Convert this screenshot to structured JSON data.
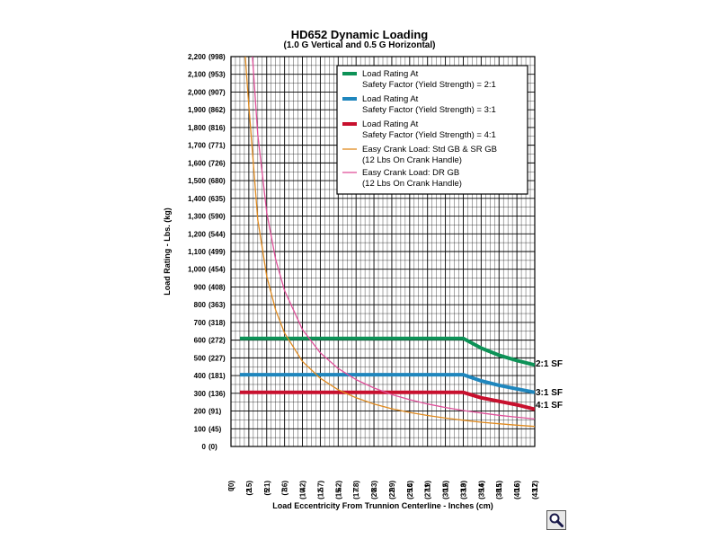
{
  "chart_data": {
    "type": "line",
    "title": "HD652 Dynamic Loading",
    "subtitle": "(1.0 G Vertical and 0.5 G Horizontal)",
    "xlabel": "Load Eccentricity From Trunnion Centerline - Inches (cm)",
    "ylabel": "Load Rating - Lbs. (kg)",
    "xlim": [
      0,
      17
    ],
    "ylim": [
      0,
      2200
    ],
    "grid": true,
    "legend_position": "top-right",
    "x_ticks": [
      {
        "in": "0",
        "cm": "(0)"
      },
      {
        "in": "1",
        "cm": "(2.5)"
      },
      {
        "in": "2",
        "cm": "(5.1)"
      },
      {
        "in": "3",
        "cm": "(7.6)"
      },
      {
        "in": "4",
        "cm": "(10.2)"
      },
      {
        "in": "5",
        "cm": "(12.7)"
      },
      {
        "in": "6",
        "cm": "(15.2)"
      },
      {
        "in": "7",
        "cm": "(17.8)"
      },
      {
        "in": "8",
        "cm": "(20.3)"
      },
      {
        "in": "9",
        "cm": "(22.9)"
      },
      {
        "in": "10",
        "cm": "(25.4)"
      },
      {
        "in": "11",
        "cm": "(27.9)"
      },
      {
        "in": "12",
        "cm": "(30.5)"
      },
      {
        "in": "13",
        "cm": "(33.0)"
      },
      {
        "in": "14",
        "cm": "(35.6)"
      },
      {
        "in": "15",
        "cm": "(38.1)"
      },
      {
        "in": "16",
        "cm": "(40.6)"
      },
      {
        "in": "17",
        "cm": "(43.2)"
      }
    ],
    "y_ticks": [
      {
        "lbs": "0",
        "kg": "(0)"
      },
      {
        "lbs": "100",
        "kg": "(45)"
      },
      {
        "lbs": "200",
        "kg": "(91)"
      },
      {
        "lbs": "300",
        "kg": "(136)"
      },
      {
        "lbs": "400",
        "kg": "(181)"
      },
      {
        "lbs": "500",
        "kg": "(227)"
      },
      {
        "lbs": "600",
        "kg": "(272)"
      },
      {
        "lbs": "700",
        "kg": "(318)"
      },
      {
        "lbs": "800",
        "kg": "(363)"
      },
      {
        "lbs": "900",
        "kg": "(408)"
      },
      {
        "lbs": "1,000",
        "kg": "(454)"
      },
      {
        "lbs": "1,100",
        "kg": "(499)"
      },
      {
        "lbs": "1,200",
        "kg": "(544)"
      },
      {
        "lbs": "1,300",
        "kg": "(590)"
      },
      {
        "lbs": "1,400",
        "kg": "(635)"
      },
      {
        "lbs": "1,500",
        "kg": "(680)"
      },
      {
        "lbs": "1,600",
        "kg": "(726)"
      },
      {
        "lbs": "1,700",
        "kg": "(771)"
      },
      {
        "lbs": "1,800",
        "kg": "(816)"
      },
      {
        "lbs": "1,900",
        "kg": "(862)"
      },
      {
        "lbs": "2,000",
        "kg": "(907)"
      },
      {
        "lbs": "2,100",
        "kg": "(953)"
      },
      {
        "lbs": "2,200",
        "kg": "(998)"
      }
    ],
    "series": [
      {
        "name": "Load Rating At Safety Factor (Yield Strength) = 2:1",
        "legend_lines": [
          "Load Rating At",
          "Safety Factor (Yield Strength) = 2:1"
        ],
        "end_label": "2:1 SF",
        "color": "#0d9257",
        "weight": "heavy",
        "x": [
          0.5,
          13,
          14,
          15,
          16,
          17
        ],
        "y": [
          610,
          610,
          555,
          515,
          485,
          460
        ]
      },
      {
        "name": "Load Rating At Safety Factor (Yield Strength) = 3:1",
        "legend_lines": [
          "Load Rating At",
          "Safety Factor (Yield Strength) = 3:1"
        ],
        "end_label": "3:1 SF",
        "color": "#1f86bd",
        "weight": "heavy",
        "x": [
          0.5,
          13,
          14,
          15,
          16,
          17
        ],
        "y": [
          405,
          405,
          370,
          345,
          325,
          305
        ]
      },
      {
        "name": "Load Rating At Safety Factor (Yield Strength) = 4:1",
        "legend_lines": [
          "Load Rating At",
          "Safety Factor (Yield Strength) = 4:1"
        ],
        "end_label": "4:1 SF",
        "color": "#c8102e",
        "weight": "heavy",
        "x": [
          0.5,
          13,
          14,
          15,
          16,
          17
        ],
        "y": [
          305,
          305,
          275,
          255,
          235,
          210
        ]
      },
      {
        "name": "Easy Crank Load: Std GB & SR GB (12 Lbs On Crank Handle)",
        "legend_lines": [
          "Easy Crank Load: Std GB & SR GB",
          "(12 Lbs On Crank Handle)"
        ],
        "color": "#e08a1e",
        "weight": "thin",
        "x": [
          0.8,
          1,
          1.5,
          2,
          2.5,
          3,
          4,
          5,
          6,
          7,
          8,
          9,
          10,
          11,
          12,
          13,
          14,
          15,
          16,
          17
        ],
        "y": [
          2200,
          1920,
          1280,
          960,
          770,
          640,
          480,
          385,
          320,
          275,
          240,
          213,
          192,
          175,
          160,
          148,
          137,
          128,
          120,
          113
        ]
      },
      {
        "name": "Easy Crank Load: DR GB (12 Lbs On Crank Handle)",
        "legend_lines": [
          "Easy Crank Load: DR GB",
          "(12 Lbs On Crank Handle)"
        ],
        "color": "#e0509a",
        "weight": "thin",
        "x": [
          1.2,
          1.5,
          2,
          2.5,
          3,
          4,
          5,
          6,
          7,
          8,
          9,
          10,
          11,
          12,
          13,
          14,
          15,
          16,
          17
        ],
        "y": [
          2200,
          1760,
          1320,
          1056,
          880,
          660,
          528,
          440,
          377,
          330,
          293,
          264,
          240,
          220,
          203,
          189,
          176,
          165,
          155
        ]
      }
    ]
  }
}
